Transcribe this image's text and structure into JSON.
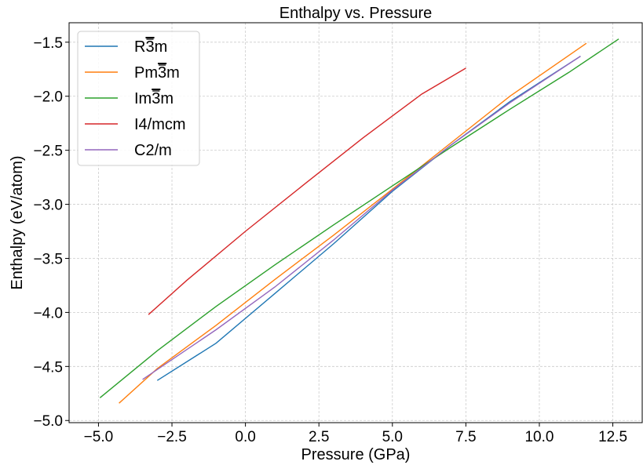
{
  "chart_data": {
    "type": "line",
    "title": "Enthalpy vs. Pressure",
    "xlabel": "Pressure (GPa)",
    "ylabel": "Enthalpy (eV/atom)",
    "xlim": [
      -6.0,
      13.5
    ],
    "ylim": [
      -5.02,
      -1.32
    ],
    "xticks": [
      -5.0,
      -2.5,
      0.0,
      2.5,
      5.0,
      7.5,
      10.0,
      12.5
    ],
    "xtick_labels": [
      "−5.0",
      "−2.5",
      "0.0",
      "2.5",
      "5.0",
      "7.5",
      "10.0",
      "12.5"
    ],
    "yticks": [
      -5.0,
      -4.5,
      -4.0,
      -3.5,
      -3.0,
      -2.5,
      -2.0,
      -1.5
    ],
    "ytick_labels": [
      "−5.0",
      "−4.5",
      "−4.0",
      "−3.5",
      "−3.0",
      "−2.5",
      "−2.0",
      "−1.5"
    ],
    "grid": true,
    "legend_position": "top-left",
    "series": [
      {
        "name": "RĆ3m",
        "label_base": "R",
        "label_bar": "3",
        "label_rest": "m",
        "color": "#1f77b4",
        "x": [
          -3.0,
          -1.0,
          1.0,
          3.0,
          5.0,
          7.0,
          9.0,
          11.4
        ],
        "y": [
          -4.63,
          -4.285,
          -3.825,
          -3.365,
          -2.88,
          -2.45,
          -2.05,
          -1.63
        ]
      },
      {
        "name": "Pm3m",
        "label_base": "Pm",
        "label_bar": "3",
        "label_rest": "m",
        "color": "#ff7f0e",
        "x": [
          -4.3,
          -3.0,
          -1.0,
          1.0,
          3.0,
          5.0,
          7.0,
          9.0,
          11.6
        ],
        "y": [
          -4.84,
          -4.52,
          -4.12,
          -3.695,
          -3.285,
          -2.86,
          -2.43,
          -2.0,
          -1.51
        ]
      },
      {
        "name": "Im3m",
        "label_base": "Im",
        "label_bar": "3",
        "label_rest": "m",
        "color": "#2ca02c",
        "x": [
          -4.95,
          -3.0,
          -1.0,
          1.0,
          3.0,
          5.0,
          7.0,
          9.0,
          11.0,
          12.7
        ],
        "y": [
          -4.79,
          -4.355,
          -3.945,
          -3.56,
          -3.19,
          -2.83,
          -2.47,
          -2.12,
          -1.78,
          -1.47
        ]
      },
      {
        "name": "I4/mcm",
        "label_base": "I4/mcm",
        "label_bar": "",
        "label_rest": "",
        "color": "#d62728",
        "x": [
          -3.3,
          -2.0,
          0.0,
          2.0,
          4.0,
          6.0,
          7.5
        ],
        "y": [
          -4.02,
          -3.705,
          -3.25,
          -2.815,
          -2.385,
          -1.98,
          -1.74
        ]
      },
      {
        "name": "C2/m",
        "label_base": "C2/m",
        "label_bar": "",
        "label_rest": "",
        "color": "#9467bd",
        "x": [
          -3.5,
          -1.0,
          1.0,
          3.0,
          5.0,
          7.0,
          9.0,
          11.4
        ],
        "y": [
          -4.62,
          -4.16,
          -3.765,
          -3.33,
          -2.87,
          -2.45,
          -2.06,
          -1.63
        ]
      }
    ]
  }
}
